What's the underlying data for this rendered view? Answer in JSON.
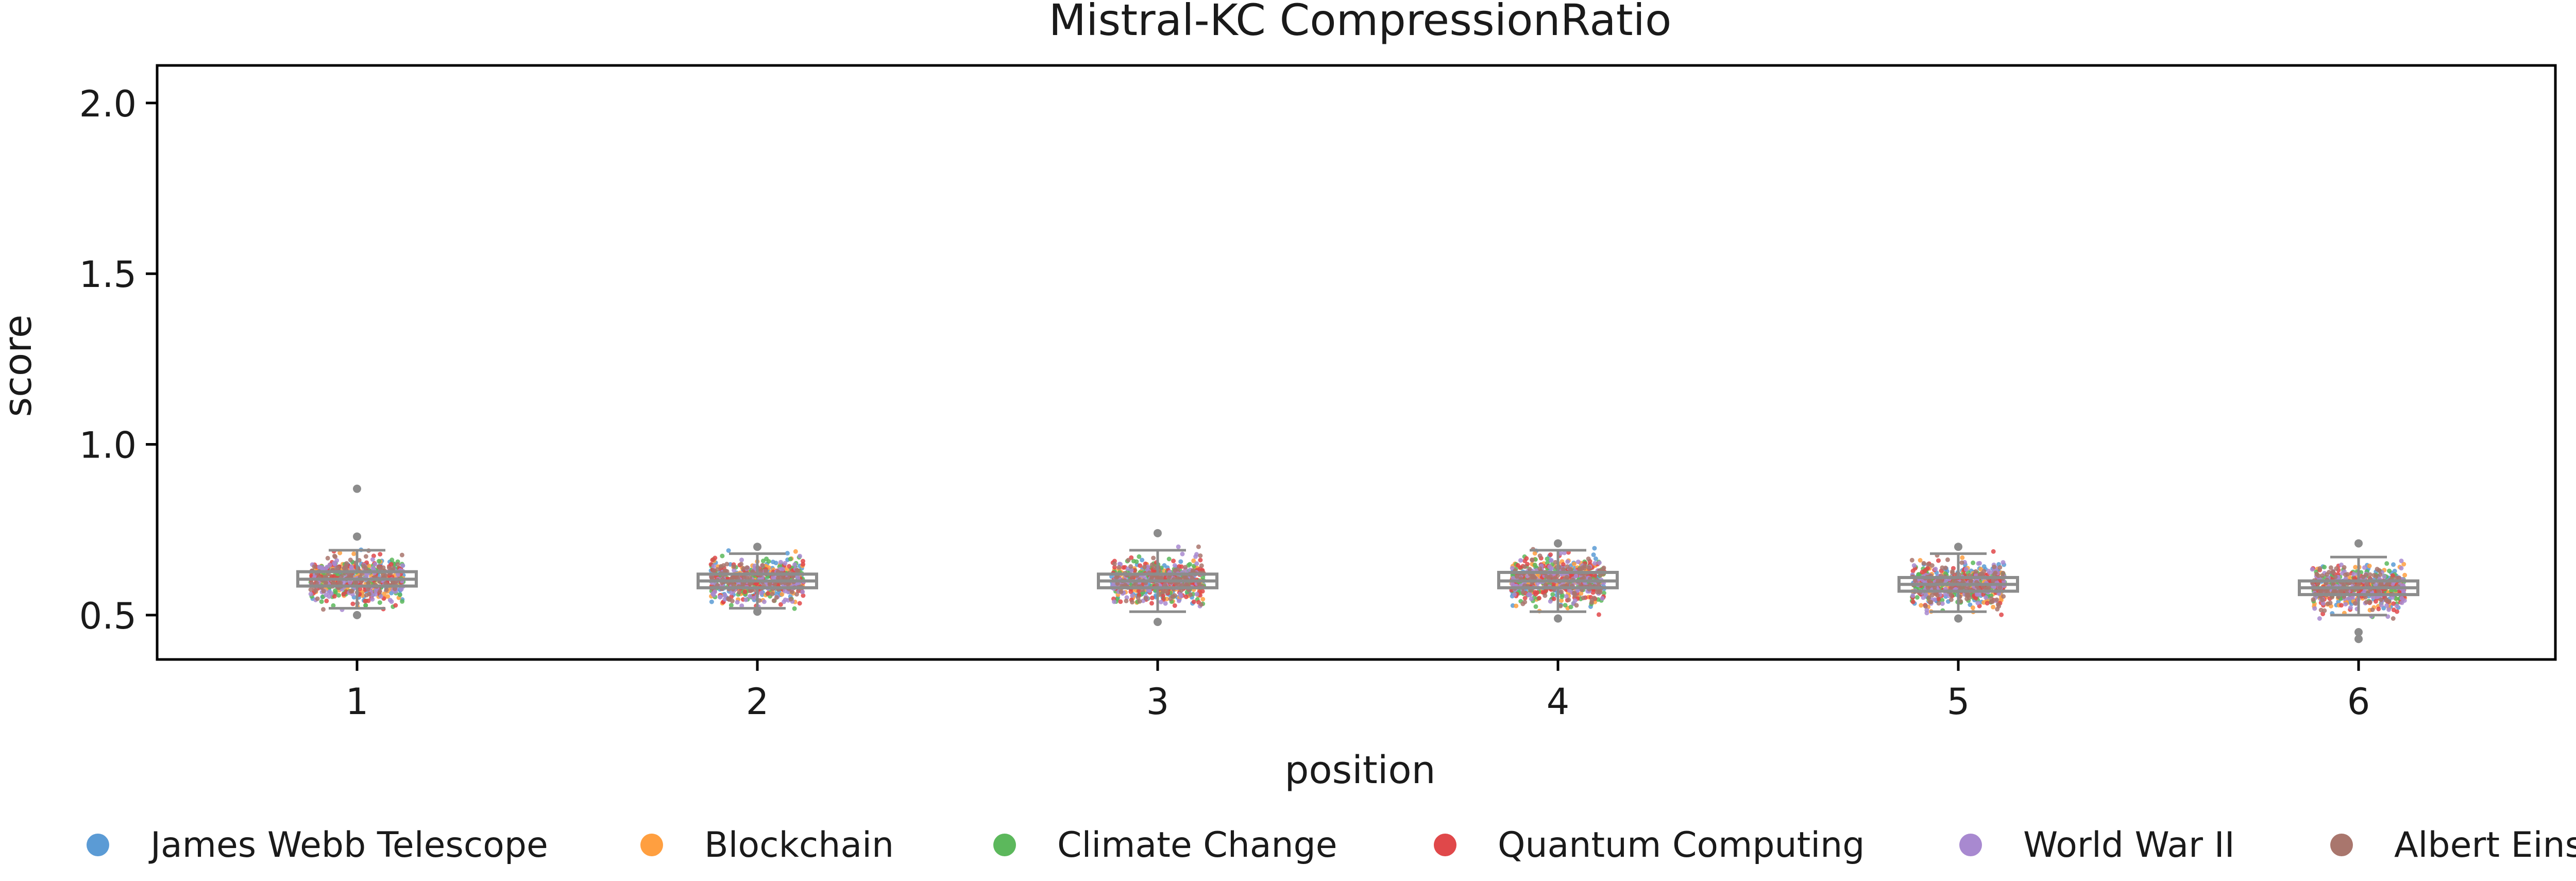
{
  "chart_data": {
    "type": "scatter",
    "subtype": "box-strip",
    "title": "Mistral-KC CompressionRatio",
    "xlabel": "position",
    "ylabel": "score",
    "categories": [
      "1",
      "2",
      "3",
      "4",
      "5",
      "6"
    ],
    "ylim": [
      0.37,
      2.11
    ],
    "yticks": [
      "0.5",
      "1.0",
      "1.5",
      "2.0"
    ],
    "grid": false,
    "legend_position": "bottom",
    "series": [
      {
        "name": "James Webb Telescope",
        "color": "#5b9bd5"
      },
      {
        "name": "Blockchain",
        "color": "#ff9f40"
      },
      {
        "name": "Climate Change",
        "color": "#5cb85c"
      },
      {
        "name": "Quantum Computing",
        "color": "#e0484a"
      },
      {
        "name": "World War II",
        "color": "#a889d0"
      },
      {
        "name": "Albert Einstein",
        "color": "#a9766d"
      }
    ],
    "boxes": [
      {
        "position": "1",
        "q1": 0.585,
        "median": 0.605,
        "q3": 0.627,
        "whisker_low": 0.52,
        "whisker_high": 0.69,
        "outliers": [
          0.87,
          0.73,
          0.5
        ]
      },
      {
        "position": "2",
        "q1": 0.58,
        "median": 0.6,
        "q3": 0.62,
        "whisker_low": 0.52,
        "whisker_high": 0.68,
        "outliers": [
          0.7,
          0.51
        ]
      },
      {
        "position": "3",
        "q1": 0.58,
        "median": 0.6,
        "q3": 0.62,
        "whisker_low": 0.51,
        "whisker_high": 0.69,
        "outliers": [
          0.74,
          0.48
        ]
      },
      {
        "position": "4",
        "q1": 0.58,
        "median": 0.6,
        "q3": 0.625,
        "whisker_low": 0.51,
        "whisker_high": 0.69,
        "outliers": [
          0.71,
          0.49
        ]
      },
      {
        "position": "5",
        "q1": 0.57,
        "median": 0.59,
        "q3": 0.61,
        "whisker_low": 0.51,
        "whisker_high": 0.68,
        "outliers": [
          0.7,
          0.49
        ]
      },
      {
        "position": "6",
        "q1": 0.56,
        "median": 0.58,
        "q3": 0.6,
        "whisker_low": 0.5,
        "whisker_high": 0.67,
        "outliers": [
          0.71,
          0.45,
          0.43
        ]
      }
    ]
  }
}
